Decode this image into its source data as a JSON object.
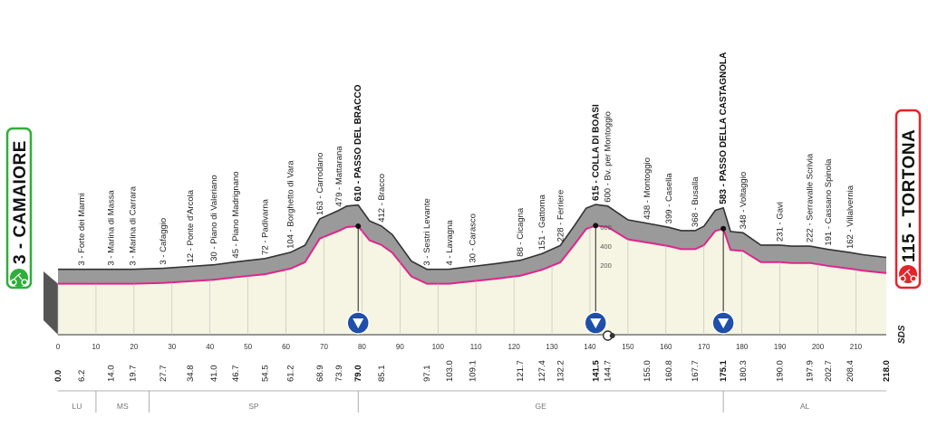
{
  "start": {
    "label": "3 - CAMAIORE",
    "color": "#2fae3a"
  },
  "finish": {
    "label": "115 - TORTONA",
    "color": "#e2252b"
  },
  "logo": "SDS",
  "colors": {
    "pink": "#e0248c",
    "profile_fill": "#f6f5e3",
    "mountains": "#9a9a9a"
  },
  "icons": [
    "cyclist-icon",
    "sprint-bonus-icon",
    "climb-finish-icon",
    "intermediate-point-icon"
  ],
  "chart_data": {
    "type": "area",
    "title": "",
    "xlabel": "",
    "ylabel": "",
    "xlim": [
      0,
      218
    ],
    "ylim": [
      0,
      800
    ],
    "elevation_ticks": [
      200,
      400,
      600
    ],
    "elevation_profile": [
      [
        0,
        3
      ],
      [
        6.2,
        3
      ],
      [
        14,
        3
      ],
      [
        19.7,
        3
      ],
      [
        27.7,
        12
      ],
      [
        34.8,
        30
      ],
      [
        41,
        45
      ],
      [
        46.7,
        72
      ],
      [
        54.5,
        104
      ],
      [
        61.2,
        163
      ],
      [
        65,
        230
      ],
      [
        68.9,
        479
      ],
      [
        73.9,
        560
      ],
      [
        76,
        600
      ],
      [
        79,
        610
      ],
      [
        82,
        460
      ],
      [
        85.1,
        412
      ],
      [
        88,
        330
      ],
      [
        93,
        80
      ],
      [
        97.1,
        3
      ],
      [
        103,
        4
      ],
      [
        109.1,
        30
      ],
      [
        115,
        55
      ],
      [
        121.7,
        88
      ],
      [
        127.4,
        151
      ],
      [
        132.2,
        228
      ],
      [
        136,
        420
      ],
      [
        139,
        580
      ],
      [
        141.5,
        615
      ],
      [
        144.7,
        600
      ],
      [
        150,
        470
      ],
      [
        155,
        438
      ],
      [
        160.8,
        399
      ],
      [
        164,
        368
      ],
      [
        167.7,
        368
      ],
      [
        170,
        410
      ],
      [
        173,
        560
      ],
      [
        175.1,
        583
      ],
      [
        177,
        360
      ],
      [
        180.3,
        348
      ],
      [
        185,
        231
      ],
      [
        190,
        231
      ],
      [
        193,
        222
      ],
      [
        197.9,
        222
      ],
      [
        202.7,
        191
      ],
      [
        208.4,
        162
      ],
      [
        212,
        140
      ],
      [
        218,
        115
      ]
    ],
    "km_ticks": [
      0,
      10,
      20,
      30,
      40,
      50,
      60,
      70,
      80,
      90,
      100,
      110,
      120,
      130,
      140,
      150,
      160,
      170,
      180,
      190,
      200,
      210
    ],
    "distance_labels": [
      {
        "km": 0,
        "label": "0.0",
        "bold": true
      },
      {
        "km": 6.2,
        "label": "6.2"
      },
      {
        "km": 14,
        "label": "14.0"
      },
      {
        "km": 19.7,
        "label": "19.7"
      },
      {
        "km": 27.7,
        "label": "27.7"
      },
      {
        "km": 34.8,
        "label": "34.8"
      },
      {
        "km": 41,
        "label": "41.0"
      },
      {
        "km": 46.7,
        "label": "46.7"
      },
      {
        "km": 54.5,
        "label": "54.5"
      },
      {
        "km": 61.2,
        "label": "61.2"
      },
      {
        "km": 68.9,
        "label": "68.9"
      },
      {
        "km": 73.9,
        "label": "73.9"
      },
      {
        "km": 79,
        "label": "79.0",
        "bold": true
      },
      {
        "km": 85.1,
        "label": "85.1"
      },
      {
        "km": 97.1,
        "label": "97.1"
      },
      {
        "km": 103,
        "label": "103.0"
      },
      {
        "km": 109.1,
        "label": "109.1"
      },
      {
        "km": 121.7,
        "label": "121.7"
      },
      {
        "km": 127.4,
        "label": "127.4"
      },
      {
        "km": 132.2,
        "label": "132.2"
      },
      {
        "km": 141.5,
        "label": "141.5",
        "bold": true
      },
      {
        "km": 144.7,
        "label": "144.7"
      },
      {
        "km": 155,
        "label": "155.0"
      },
      {
        "km": 160.8,
        "label": "160.8"
      },
      {
        "km": 167.7,
        "label": "167.7"
      },
      {
        "km": 175.1,
        "label": "175.1",
        "bold": true
      },
      {
        "km": 180.3,
        "label": "180.3"
      },
      {
        "km": 190,
        "label": "190.0"
      },
      {
        "km": 197.9,
        "label": "197.9"
      },
      {
        "km": 202.7,
        "label": "202.7"
      },
      {
        "km": 208.4,
        "label": "208.4"
      },
      {
        "km": 218,
        "label": "218.0",
        "bold": true
      }
    ],
    "waypoints": [
      {
        "km": 6.2,
        "label": "3 - Forte dei Marmi"
      },
      {
        "km": 14,
        "label": "3 - Marina di Massa"
      },
      {
        "km": 19.7,
        "label": "3 - Marina di Carrara"
      },
      {
        "km": 27.7,
        "label": "3 - Cafaggio"
      },
      {
        "km": 34.8,
        "label": "12 - Ponte d'Arcola"
      },
      {
        "km": 41,
        "label": "30 - Piano di Valeriano"
      },
      {
        "km": 46.7,
        "label": "45 - Piano Madrignano"
      },
      {
        "km": 54.5,
        "label": "72 - Padivarna"
      },
      {
        "km": 61.2,
        "label": "104 - Borghetto di Vara"
      },
      {
        "km": 68.9,
        "label": "163 - Carrodano"
      },
      {
        "km": 73.9,
        "label": "479 - Mattarana"
      },
      {
        "km": 79,
        "label": "610 - PASSO DEL BRACCO",
        "bold": true
      },
      {
        "km": 85.1,
        "label": "412 - Bracco"
      },
      {
        "km": 97.1,
        "label": "3 - Sestri Levante"
      },
      {
        "km": 103,
        "label": "4 - Lavagna"
      },
      {
        "km": 109.1,
        "label": "30 - Carasco"
      },
      {
        "km": 121.7,
        "label": "88 - Cicagna"
      },
      {
        "km": 127.4,
        "label": "151 - Gattorna"
      },
      {
        "km": 132.2,
        "label": "228 - Ferriere"
      },
      {
        "km": 141.5,
        "label": "615 - COLLA DI BOASI",
        "bold": true
      },
      {
        "km": 144.7,
        "label": "600 - Bv. per Montoggio"
      },
      {
        "km": 155,
        "label": "438 - Montoggio"
      },
      {
        "km": 160.8,
        "label": "399 - Casella"
      },
      {
        "km": 167.7,
        "label": "368 - Busalla"
      },
      {
        "km": 175.1,
        "label": "583 - PASSO DELLA CASTAGNOLA",
        "bold": true
      },
      {
        "km": 180.3,
        "label": "348 - Voltaggio"
      },
      {
        "km": 190,
        "label": "231 - Gavi"
      },
      {
        "km": 197.9,
        "label": "222 - Serravalle Scrivia"
      },
      {
        "km": 202.7,
        "label": "191 - Cassano Spinola"
      },
      {
        "km": 208.4,
        "label": "162 - Villalvernia"
      }
    ],
    "climbs_km": [
      79,
      141.5,
      175.1
    ],
    "intermediate_km": 144.7,
    "regions": [
      {
        "label": "LU",
        "from": 0,
        "to": 10
      },
      {
        "label": "MS",
        "from": 10,
        "to": 24
      },
      {
        "label": "SP",
        "from": 24,
        "to": 79
      },
      {
        "label": "GE",
        "from": 79,
        "to": 175.1
      },
      {
        "label": "AL",
        "from": 175.1,
        "to": 218
      }
    ]
  }
}
